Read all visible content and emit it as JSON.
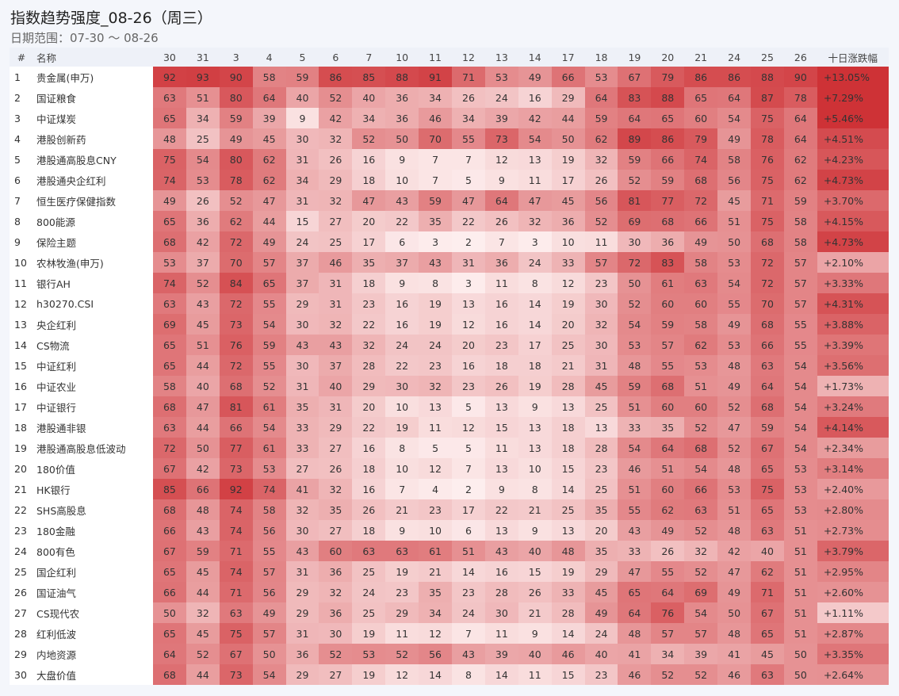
{
  "header": {
    "title": "指数趋势强度_08-26（周三）",
    "subtitle": "日期范围：07-30 ～ 08-26"
  },
  "table": {
    "index_header": "#",
    "name_header": "名称",
    "change_header": "十日涨跌幅",
    "columns": [
      "30",
      "31",
      "3",
      "4",
      "5",
      "6",
      "7",
      "10",
      "11",
      "12",
      "13",
      "14",
      "17",
      "18",
      "19",
      "20",
      "21",
      "24",
      "25",
      "26"
    ],
    "rows": [
      {
        "index": "1",
        "name": "贵金属(申万)",
        "values": [
          92,
          93,
          90,
          58,
          59,
          86,
          85,
          88,
          91,
          71,
          53,
          49,
          66,
          53,
          67,
          79,
          86,
          86,
          88,
          90
        ],
        "change": "+13.05%"
      },
      {
        "index": "2",
        "name": "国证粮食",
        "values": [
          63,
          51,
          80,
          64,
          40,
          52,
          40,
          36,
          34,
          26,
          24,
          16,
          29,
          64,
          83,
          88,
          65,
          64,
          87,
          78
        ],
        "change": "+7.29%"
      },
      {
        "index": "3",
        "name": "中证煤炭",
        "values": [
          65,
          34,
          59,
          39,
          9,
          42,
          34,
          36,
          46,
          34,
          39,
          42,
          44,
          59,
          64,
          65,
          60,
          54,
          75,
          64
        ],
        "change": "+5.46%"
      },
      {
        "index": "4",
        "name": "港股创新药",
        "values": [
          48,
          25,
          49,
          45,
          30,
          32,
          52,
          50,
          70,
          55,
          73,
          54,
          50,
          62,
          89,
          86,
          79,
          49,
          78,
          64
        ],
        "change": "+4.51%"
      },
      {
        "index": "5",
        "name": "港股通高股息CNY",
        "values": [
          75,
          54,
          80,
          62,
          31,
          26,
          16,
          9,
          7,
          7,
          12,
          13,
          19,
          32,
          59,
          66,
          74,
          58,
          76,
          62
        ],
        "change": "+4.23%"
      },
      {
        "index": "6",
        "name": "港股通央企红利",
        "values": [
          74,
          53,
          78,
          62,
          34,
          29,
          18,
          10,
          7,
          5,
          9,
          11,
          17,
          26,
          52,
          59,
          68,
          56,
          75,
          62
        ],
        "change": "+4.73%"
      },
      {
        "index": "7",
        "name": "恒生医疗保健指数",
        "values": [
          49,
          26,
          52,
          47,
          31,
          32,
          47,
          43,
          59,
          47,
          64,
          47,
          45,
          56,
          81,
          77,
          72,
          45,
          71,
          59
        ],
        "change": "+3.70%"
      },
      {
        "index": "8",
        "name": "800能源",
        "values": [
          65,
          36,
          62,
          44,
          15,
          27,
          20,
          22,
          35,
          22,
          26,
          32,
          36,
          52,
          69,
          68,
          66,
          51,
          75,
          58
        ],
        "change": "+4.15%"
      },
      {
        "index": "9",
        "name": "保险主题",
        "values": [
          68,
          42,
          72,
          49,
          24,
          25,
          17,
          6,
          3,
          2,
          7,
          3,
          10,
          11,
          30,
          36,
          49,
          50,
          68,
          58
        ],
        "change": "+4.73%"
      },
      {
        "index": "10",
        "name": "农林牧渔(申万)",
        "values": [
          53,
          37,
          70,
          57,
          37,
          46,
          35,
          37,
          43,
          31,
          36,
          24,
          33,
          57,
          72,
          83,
          58,
          53,
          72,
          57
        ],
        "change": "+2.10%"
      },
      {
        "index": "11",
        "name": "银行AH",
        "values": [
          74,
          52,
          84,
          65,
          37,
          31,
          18,
          9,
          8,
          3,
          11,
          8,
          12,
          23,
          50,
          61,
          63,
          54,
          72,
          57
        ],
        "change": "+3.33%"
      },
      {
        "index": "12",
        "name": "h30270.CSI",
        "values": [
          63,
          43,
          72,
          55,
          29,
          31,
          23,
          16,
          19,
          13,
          16,
          14,
          19,
          30,
          52,
          60,
          60,
          55,
          70,
          57
        ],
        "change": "+4.31%"
      },
      {
        "index": "13",
        "name": "央企红利",
        "values": [
          69,
          45,
          73,
          54,
          30,
          32,
          22,
          16,
          19,
          12,
          16,
          14,
          20,
          32,
          54,
          59,
          58,
          49,
          68,
          55
        ],
        "change": "+3.88%"
      },
      {
        "index": "14",
        "name": "CS物流",
        "values": [
          65,
          51,
          76,
          59,
          43,
          43,
          32,
          24,
          24,
          20,
          23,
          17,
          25,
          30,
          53,
          57,
          62,
          53,
          66,
          55
        ],
        "change": "+3.39%"
      },
      {
        "index": "15",
        "name": "中证红利",
        "values": [
          65,
          44,
          72,
          55,
          30,
          37,
          28,
          22,
          23,
          16,
          18,
          18,
          21,
          31,
          48,
          55,
          53,
          48,
          63,
          54
        ],
        "change": "+3.56%"
      },
      {
        "index": "16",
        "name": "中证农业",
        "values": [
          58,
          40,
          68,
          52,
          31,
          40,
          29,
          30,
          32,
          23,
          26,
          19,
          28,
          45,
          59,
          68,
          51,
          49,
          64,
          54
        ],
        "change": "+1.73%"
      },
      {
        "index": "17",
        "name": "中证银行",
        "values": [
          68,
          47,
          81,
          61,
          35,
          31,
          20,
          10,
          13,
          5,
          13,
          9,
          13,
          25,
          51,
          60,
          60,
          52,
          68,
          54
        ],
        "change": "+3.24%"
      },
      {
        "index": "18",
        "name": "港股通非银",
        "values": [
          63,
          44,
          66,
          54,
          33,
          29,
          22,
          19,
          11,
          12,
          15,
          13,
          18,
          13,
          33,
          35,
          52,
          47,
          59,
          54
        ],
        "change": "+4.14%"
      },
      {
        "index": "19",
        "name": "港股通高股息低波动",
        "values": [
          72,
          50,
          77,
          61,
          33,
          27,
          16,
          8,
          5,
          5,
          11,
          13,
          18,
          28,
          54,
          64,
          68,
          52,
          67,
          54
        ],
        "change": "+2.34%"
      },
      {
        "index": "20",
        "name": "180价值",
        "values": [
          67,
          42,
          73,
          53,
          27,
          26,
          18,
          10,
          12,
          7,
          13,
          10,
          15,
          23,
          46,
          51,
          54,
          48,
          65,
          53
        ],
        "change": "+3.14%"
      },
      {
        "index": "21",
        "name": "HK银行",
        "values": [
          85,
          66,
          92,
          74,
          41,
          32,
          16,
          7,
          4,
          2,
          9,
          8,
          14,
          25,
          51,
          60,
          66,
          53,
          75,
          53
        ],
        "change": "+2.40%"
      },
      {
        "index": "22",
        "name": "SHS高股息",
        "values": [
          68,
          48,
          74,
          58,
          32,
          35,
          26,
          21,
          23,
          17,
          22,
          21,
          25,
          35,
          55,
          62,
          63,
          51,
          65,
          53
        ],
        "change": "+2.80%"
      },
      {
        "index": "23",
        "name": "180金融",
        "values": [
          66,
          43,
          74,
          56,
          30,
          27,
          18,
          9,
          10,
          6,
          13,
          9,
          13,
          20,
          43,
          49,
          52,
          48,
          63,
          51
        ],
        "change": "+2.73%"
      },
      {
        "index": "24",
        "name": "800有色",
        "values": [
          67,
          59,
          71,
          55,
          43,
          60,
          63,
          63,
          61,
          51,
          43,
          40,
          48,
          35,
          33,
          26,
          32,
          42,
          40,
          51
        ],
        "change": "+3.79%"
      },
      {
        "index": "25",
        "name": "国企红利",
        "values": [
          65,
          45,
          74,
          57,
          31,
          36,
          25,
          19,
          21,
          14,
          16,
          15,
          19,
          29,
          47,
          55,
          52,
          47,
          62,
          51
        ],
        "change": "+2.95%"
      },
      {
        "index": "26",
        "name": "国证油气",
        "values": [
          66,
          44,
          71,
          56,
          29,
          32,
          24,
          23,
          35,
          23,
          28,
          26,
          33,
          45,
          65,
          64,
          69,
          49,
          71,
          51
        ],
        "change": "+2.60%"
      },
      {
        "index": "27",
        "name": "CS现代农",
        "values": [
          50,
          32,
          63,
          49,
          29,
          36,
          25,
          29,
          34,
          24,
          30,
          21,
          28,
          49,
          64,
          76,
          54,
          50,
          67,
          51
        ],
        "change": "+1.11%"
      },
      {
        "index": "28",
        "name": "红利低波",
        "values": [
          65,
          45,
          75,
          57,
          31,
          30,
          19,
          11,
          12,
          7,
          11,
          9,
          14,
          24,
          48,
          57,
          57,
          48,
          65,
          51
        ],
        "change": "+2.87%"
      },
      {
        "index": "29",
        "name": "内地资源",
        "values": [
          64,
          52,
          67,
          50,
          36,
          52,
          53,
          52,
          56,
          43,
          39,
          40,
          46,
          40,
          41,
          34,
          39,
          41,
          45,
          50
        ],
        "change": "+3.35%"
      },
      {
        "index": "30",
        "name": "大盘价值",
        "values": [
          68,
          44,
          73,
          54,
          29,
          27,
          19,
          12,
          14,
          8,
          14,
          11,
          15,
          23,
          46,
          52,
          52,
          46,
          63,
          50
        ],
        "change": "+2.64%"
      }
    ]
  }
}
